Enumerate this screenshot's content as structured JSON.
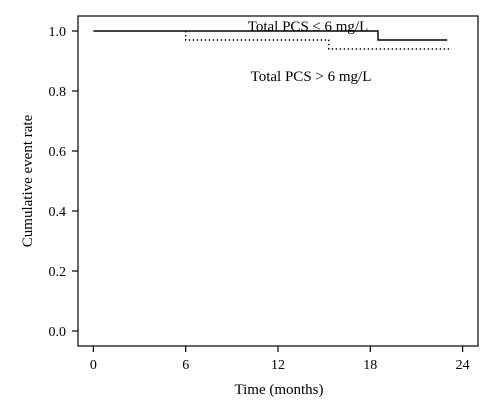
{
  "chart_data": {
    "type": "line",
    "title": "",
    "xlabel": "Time (months)",
    "ylabel": "Cumulative event rate",
    "xlim": [
      -1,
      25
    ],
    "ylim": [
      -0.05,
      1.05
    ],
    "x_ticks": [
      0,
      6,
      12,
      18,
      24
    ],
    "x_tick_labels": [
      "0",
      "6",
      "12",
      "18",
      "24"
    ],
    "y_ticks": [
      0.0,
      0.2,
      0.4,
      0.6,
      0.8,
      1.0
    ],
    "y_tick_labels": [
      "0.0",
      "0.2",
      "0.4",
      "0.6",
      "0.8",
      "1.0"
    ],
    "grid": false,
    "series": [
      {
        "name": "Total PCS ≤ 6 mg/L",
        "style": "solid",
        "color": "#000000",
        "x": [
          0,
          18.5,
          18.5,
          23
        ],
        "y": [
          1.0,
          1.0,
          0.97,
          0.97
        ]
      },
      {
        "name": "Total PCS > 6 mg/L",
        "style": "dotted",
        "color": "#000000",
        "x": [
          6,
          6,
          15.3,
          15.3,
          23.3
        ],
        "y": [
          1.0,
          0.97,
          0.97,
          0.94,
          0.94
        ]
      }
    ]
  }
}
